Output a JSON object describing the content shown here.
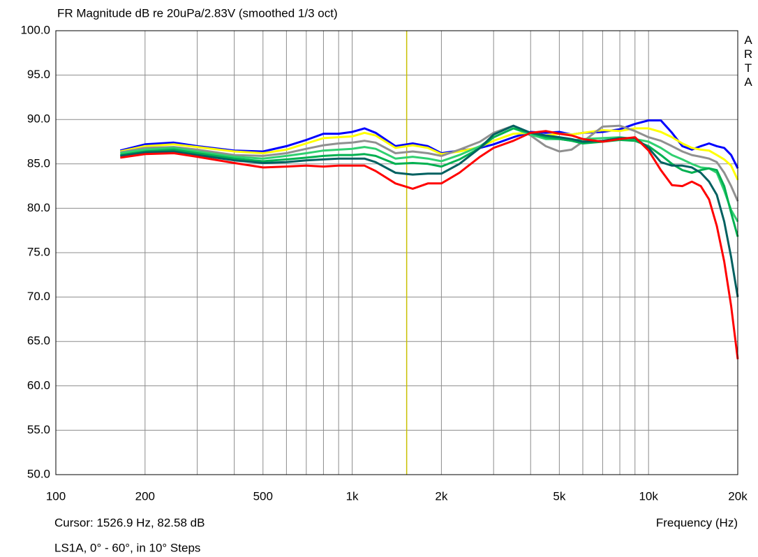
{
  "chart_data": {
    "type": "line",
    "title": "FR Magnitude dB re 20uPa/2.83V (smoothed 1/3 oct)",
    "watermark": "ARTA",
    "x_label": "Frequency (Hz)",
    "caption": "LS1A, 0° - 60°, in 10° Steps",
    "cursor": {
      "x": 1526.9,
      "label": "Cursor: 1526.9 Hz, 82.58 dB",
      "color": "#c8c000"
    },
    "xscale": "log",
    "grid": true,
    "xlim": [
      100,
      20000
    ],
    "ylim": [
      50,
      100
    ],
    "xticks": [
      {
        "value": 100,
        "label": "100"
      },
      {
        "value": 200,
        "label": "200"
      },
      {
        "value": 500,
        "label": "500"
      },
      {
        "value": 1000,
        "label": "1k"
      },
      {
        "value": 2000,
        "label": "2k"
      },
      {
        "value": 5000,
        "label": "5k"
      },
      {
        "value": 10000,
        "label": "10k"
      },
      {
        "value": 20000,
        "label": "20k"
      }
    ],
    "xminor": [
      300,
      400,
      600,
      700,
      800,
      900,
      3000,
      4000,
      6000,
      7000,
      8000,
      9000
    ],
    "yticks": [
      {
        "value": 50,
        "label": "50.0"
      },
      {
        "value": 55,
        "label": "55.0"
      },
      {
        "value": 60,
        "label": "60.0"
      },
      {
        "value": 65,
        "label": "65.0"
      },
      {
        "value": 70,
        "label": "70.0"
      },
      {
        "value": 75,
        "label": "75.0"
      },
      {
        "value": 80,
        "label": "80.0"
      },
      {
        "value": 85,
        "label": "85.0"
      },
      {
        "value": 90,
        "label": "90.0"
      },
      {
        "value": 95,
        "label": "95.0"
      },
      {
        "value": 100,
        "label": "100.0"
      }
    ],
    "x": [
      165,
      200,
      250,
      300,
      400,
      500,
      600,
      700,
      800,
      900,
      1000,
      1100,
      1200,
      1400,
      1600,
      1800,
      2000,
      2300,
      2700,
      3000,
      3500,
      4000,
      4500,
      5000,
      5500,
      6000,
      7000,
      8000,
      9000,
      10000,
      11000,
      12000,
      13000,
      14000,
      15000,
      16000,
      17000,
      18000,
      19000,
      20000
    ],
    "series": [
      {
        "color": "#0000ff",
        "values": [
          86.5,
          87.2,
          87.4,
          87.0,
          86.5,
          86.4,
          87.0,
          87.7,
          88.4,
          88.4,
          88.6,
          89.0,
          88.5,
          87.0,
          87.3,
          87.0,
          86.2,
          86.5,
          86.8,
          87.2,
          88.0,
          88.6,
          88.5,
          88.6,
          88.3,
          88.5,
          88.6,
          88.9,
          89.5,
          89.9,
          89.9,
          88.5,
          87.0,
          86.6,
          87.0,
          87.3,
          87.0,
          86.8,
          86.0,
          84.5
        ]
      },
      {
        "color": "#ffff00",
        "values": [
          86.4,
          87.0,
          87.2,
          86.9,
          86.4,
          86.2,
          86.6,
          87.3,
          87.9,
          88.0,
          88.1,
          88.5,
          88.2,
          86.8,
          87.1,
          86.8,
          86.1,
          86.4,
          86.9,
          87.6,
          88.4,
          88.5,
          88.2,
          88.4,
          88.3,
          88.5,
          88.8,
          88.7,
          89.0,
          89.0,
          88.6,
          88.0,
          87.3,
          86.8,
          86.6,
          86.5,
          86.0,
          85.5,
          84.8,
          83.2
        ]
      },
      {
        "color": "#909090",
        "values": [
          86.3,
          86.8,
          86.9,
          86.6,
          86.0,
          85.9,
          86.2,
          86.7,
          87.1,
          87.3,
          87.4,
          87.6,
          87.4,
          86.2,
          86.4,
          86.2,
          85.9,
          86.6,
          87.5,
          88.5,
          89.3,
          88.2,
          87.0,
          86.4,
          86.6,
          87.5,
          89.2,
          89.3,
          88.7,
          88.0,
          87.6,
          87.0,
          86.4,
          86.0,
          85.8,
          85.6,
          85.2,
          84.0,
          82.5,
          80.8
        ]
      },
      {
        "color": "#30d070",
        "values": [
          86.2,
          86.6,
          86.8,
          86.4,
          85.8,
          85.6,
          85.9,
          86.2,
          86.5,
          86.6,
          86.7,
          86.9,
          86.7,
          85.6,
          85.8,
          85.6,
          85.3,
          86.0,
          87.0,
          88.0,
          89.0,
          88.3,
          87.8,
          87.8,
          87.6,
          87.8,
          87.9,
          88.0,
          87.8,
          87.5,
          86.8,
          86.0,
          85.5,
          85.0,
          84.6,
          84.5,
          84.0,
          82.0,
          79.8,
          78.5
        ]
      },
      {
        "color": "#00b050",
        "values": [
          86.0,
          86.4,
          86.6,
          86.2,
          85.6,
          85.3,
          85.5,
          85.7,
          85.9,
          86.0,
          86.0,
          86.1,
          85.9,
          85.0,
          85.1,
          85.0,
          84.7,
          85.5,
          86.8,
          88.0,
          89.0,
          88.5,
          88.0,
          87.8,
          87.6,
          87.3,
          87.5,
          87.7,
          87.6,
          87.0,
          86.0,
          85.0,
          84.3,
          84.0,
          84.3,
          84.5,
          84.3,
          82.5,
          79.5,
          76.8
        ]
      },
      {
        "color": "#006060",
        "values": [
          85.9,
          86.3,
          86.4,
          86.0,
          85.4,
          85.1,
          85.2,
          85.4,
          85.5,
          85.6,
          85.6,
          85.6,
          85.2,
          84.0,
          83.8,
          83.9,
          83.9,
          85.0,
          86.8,
          88.3,
          89.3,
          88.5,
          88.2,
          88.0,
          87.8,
          87.5,
          87.6,
          87.9,
          87.9,
          86.8,
          85.2,
          84.8,
          84.8,
          84.6,
          84.0,
          83.0,
          81.5,
          78.5,
          74.5,
          70.0
        ]
      },
      {
        "color": "#ff0000",
        "values": [
          85.7,
          86.1,
          86.2,
          85.8,
          85.1,
          84.6,
          84.7,
          84.8,
          84.7,
          84.8,
          84.8,
          84.8,
          84.2,
          82.8,
          82.2,
          82.8,
          82.8,
          84.0,
          85.8,
          86.8,
          87.6,
          88.5,
          88.7,
          88.4,
          88.2,
          87.8,
          87.5,
          87.8,
          88.0,
          86.5,
          84.3,
          82.6,
          82.5,
          83.0,
          82.5,
          81.0,
          78.0,
          74.0,
          69.0,
          63.0
        ]
      }
    ]
  }
}
